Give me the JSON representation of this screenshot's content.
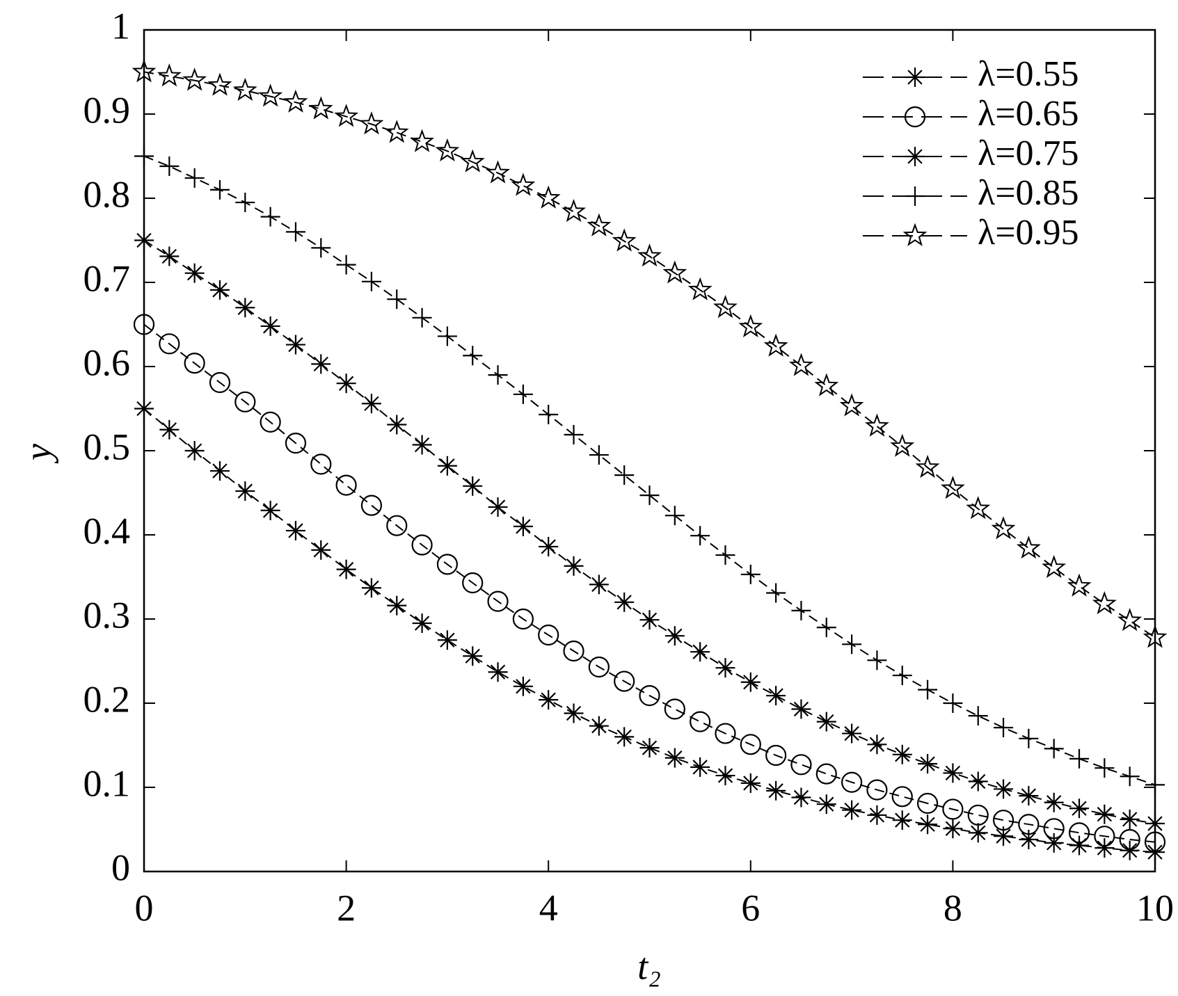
{
  "chart_data": {
    "type": "line",
    "x_label": "t₂",
    "y_label": "y",
    "x": [
      0,
      0.25,
      0.5,
      0.75,
      1,
      1.25,
      1.5,
      1.75,
      2,
      2.25,
      2.5,
      2.75,
      3,
      3.25,
      3.5,
      3.75,
      4,
      4.25,
      4.5,
      4.75,
      5,
      5.25,
      5.5,
      5.75,
      6,
      6.25,
      6.5,
      6.75,
      7,
      7.25,
      7.5,
      7.75,
      8,
      8.25,
      8.5,
      8.75,
      9,
      9.25,
      9.5,
      9.75,
      10
    ],
    "series": [
      {
        "name": "λ=0.55",
        "color": "#000000",
        "marker": "asterisk",
        "values": [
          0.55,
          0.525,
          0.5,
          0.476,
          0.452,
          0.429,
          0.405,
          0.382,
          0.359,
          0.337,
          0.316,
          0.295,
          0.275,
          0.256,
          0.237,
          0.22,
          0.204,
          0.188,
          0.173,
          0.16,
          0.147,
          0.135,
          0.124,
          0.114,
          0.105,
          0.096,
          0.088,
          0.08,
          0.073,
          0.067,
          0.061,
          0.056,
          0.051,
          0.046,
          0.042,
          0.038,
          0.034,
          0.031,
          0.028,
          0.025,
          0.023
        ]
      },
      {
        "name": "λ=0.65",
        "color": "#000000",
        "marker": "circle",
        "values": [
          0.65,
          0.627,
          0.604,
          0.581,
          0.558,
          0.534,
          0.509,
          0.484,
          0.459,
          0.435,
          0.411,
          0.388,
          0.365,
          0.343,
          0.321,
          0.3,
          0.281,
          0.262,
          0.243,
          0.226,
          0.209,
          0.193,
          0.178,
          0.164,
          0.151,
          0.138,
          0.127,
          0.116,
          0.106,
          0.097,
          0.089,
          0.081,
          0.074,
          0.067,
          0.061,
          0.056,
          0.051,
          0.046,
          0.042,
          0.038,
          0.035
        ]
      },
      {
        "name": "λ=0.75",
        "color": "#000000",
        "marker": "asterisk",
        "values": [
          0.75,
          0.731,
          0.711,
          0.691,
          0.67,
          0.648,
          0.626,
          0.603,
          0.58,
          0.556,
          0.531,
          0.507,
          0.482,
          0.458,
          0.433,
          0.41,
          0.386,
          0.363,
          0.341,
          0.32,
          0.299,
          0.28,
          0.261,
          0.242,
          0.225,
          0.209,
          0.193,
          0.178,
          0.164,
          0.151,
          0.139,
          0.128,
          0.117,
          0.107,
          0.098,
          0.09,
          0.082,
          0.075,
          0.068,
          0.062,
          0.057
        ]
      },
      {
        "name": "λ=0.85",
        "color": "#000000",
        "marker": "plus",
        "values": [
          0.85,
          0.838,
          0.824,
          0.81,
          0.795,
          0.778,
          0.76,
          0.741,
          0.721,
          0.701,
          0.68,
          0.658,
          0.636,
          0.613,
          0.59,
          0.567,
          0.543,
          0.519,
          0.495,
          0.471,
          0.447,
          0.423,
          0.399,
          0.376,
          0.353,
          0.331,
          0.31,
          0.29,
          0.27,
          0.251,
          0.233,
          0.216,
          0.2,
          0.185,
          0.171,
          0.158,
          0.146,
          0.134,
          0.123,
          0.113,
          0.103
        ]
      },
      {
        "name": "λ=0.95",
        "color": "#000000",
        "marker": "star",
        "values": [
          0.95,
          0.945,
          0.94,
          0.934,
          0.928,
          0.921,
          0.914,
          0.906,
          0.897,
          0.888,
          0.878,
          0.867,
          0.856,
          0.843,
          0.83,
          0.815,
          0.8,
          0.784,
          0.767,
          0.749,
          0.731,
          0.711,
          0.691,
          0.67,
          0.647,
          0.624,
          0.601,
          0.577,
          0.553,
          0.529,
          0.505,
          0.48,
          0.455,
          0.431,
          0.407,
          0.384,
          0.361,
          0.339,
          0.318,
          0.298,
          0.278
        ]
      }
    ],
    "xlim": [
      0,
      10
    ],
    "xticks": [
      0,
      2,
      4,
      6,
      8,
      10
    ],
    "ylim": [
      0,
      1
    ],
    "yticks": [
      0,
      0.1,
      0.2,
      0.3,
      0.4,
      0.5,
      0.6,
      0.7,
      0.8,
      0.9,
      1
    ],
    "legend": "upper right",
    "grid": false
  }
}
